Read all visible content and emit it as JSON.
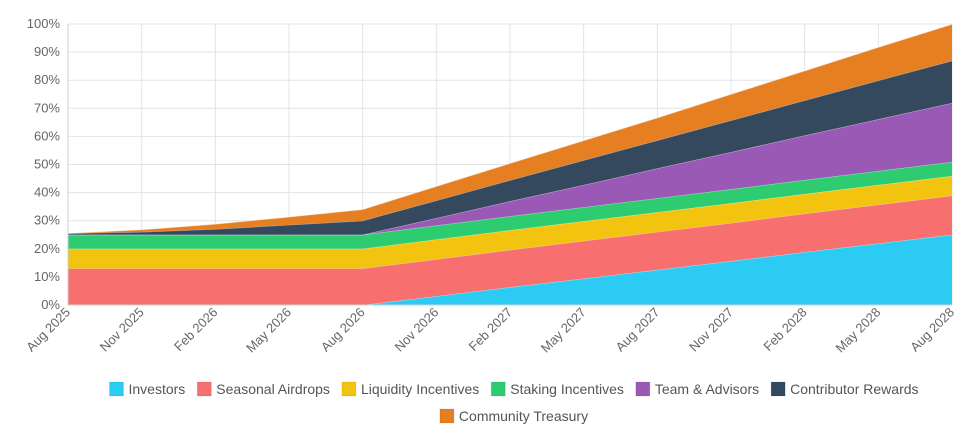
{
  "chart_data": {
    "type": "area",
    "stacked": true,
    "title": "",
    "xlabel": "",
    "ylabel": "",
    "ylim": [
      0,
      100
    ],
    "y_ticks": [
      "0%",
      "10%",
      "20%",
      "30%",
      "40%",
      "50%",
      "60%",
      "70%",
      "80%",
      "90%",
      "100%"
    ],
    "categories": [
      "Aug 2025",
      "Nov 2025",
      "Feb 2026",
      "May 2026",
      "Aug 2026",
      "Nov 2026",
      "Feb 2027",
      "May 2027",
      "Aug 2027",
      "Nov 2027",
      "Feb 2028",
      "May 2028",
      "Aug 2028"
    ],
    "grid": true,
    "legend_position": "bottom",
    "series": [
      {
        "name": "Investors",
        "color": "#2ccbf3",
        "values": [
          0,
          0,
          0,
          0,
          0,
          3.1,
          6.3,
          9.4,
          12.5,
          15.6,
          18.8,
          21.9,
          25
        ]
      },
      {
        "name": "Seasonal Airdrops",
        "color": "#f86f6f",
        "values": [
          13,
          13,
          13,
          13,
          13,
          13.2,
          13.3,
          13.4,
          13.5,
          13.6,
          13.7,
          13.8,
          13.9
        ]
      },
      {
        "name": "Liquidity Incentives",
        "color": "#f2c40f",
        "values": [
          7,
          7,
          7,
          7,
          7,
          7,
          7,
          7,
          7,
          7,
          7,
          7,
          7
        ]
      },
      {
        "name": "Staking Incentives",
        "color": "#2ecc71",
        "values": [
          5,
          5,
          5,
          5,
          5,
          5,
          5,
          5,
          5,
          5,
          5,
          5,
          5
        ]
      },
      {
        "name": "Team & Advisors",
        "color": "#9b59b6",
        "values": [
          0,
          0,
          0,
          0,
          0,
          2.6,
          5.3,
          7.9,
          10.6,
          13.2,
          15.8,
          18.4,
          21
        ]
      },
      {
        "name": "Contributor Rewards",
        "color": "#34495e",
        "values": [
          0.5,
          1,
          2,
          3.5,
          5,
          6.3,
          7.5,
          8.8,
          10,
          11.3,
          12.5,
          13.8,
          15
        ]
      },
      {
        "name": "Community Treasury",
        "color": "#e67e22",
        "values": [
          0,
          0.8,
          1.8,
          2.8,
          4,
          5,
          6,
          7,
          8,
          9.3,
          10.5,
          11.8,
          13
        ]
      }
    ]
  }
}
